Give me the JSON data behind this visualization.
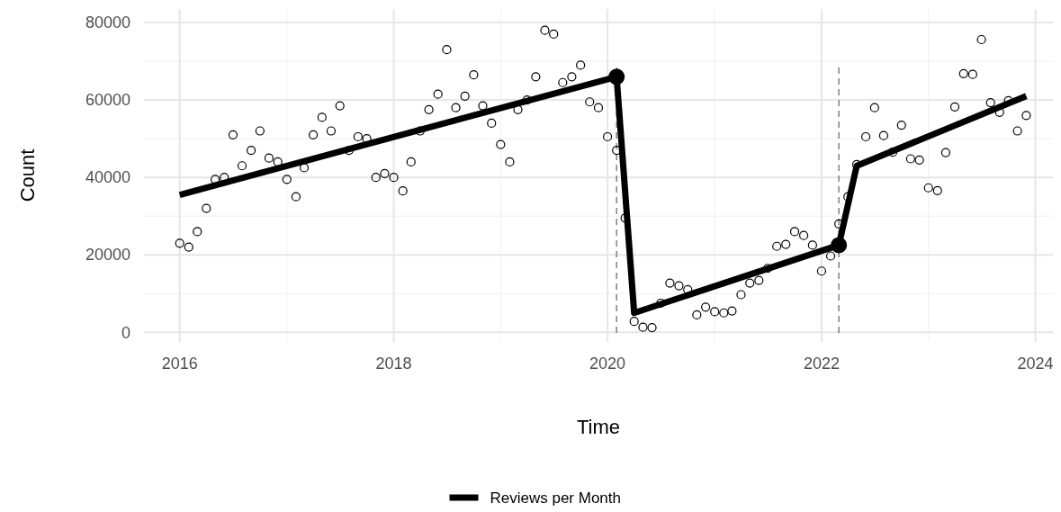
{
  "chart_data": {
    "type": "scatter",
    "xlabel": "Time",
    "ylabel": "Count",
    "xlim": [
      "2015-09",
      "2024-03"
    ],
    "xticks": [
      {
        "value": "2016",
        "label": "2016"
      },
      {
        "value": "2018",
        "label": "2018"
      },
      {
        "value": "2020",
        "label": "2020"
      },
      {
        "value": "2022",
        "label": "2022"
      },
      {
        "value": "2024",
        "label": "2024"
      }
    ],
    "ylim": [
      -2500,
      83500
    ],
    "yticks": [
      0,
      20000,
      40000,
      60000,
      80000
    ],
    "grid": true,
    "legend": "bottom",
    "series": [
      {
        "marker": "circle",
        "color": "#000000",
        "x": [
          "2016-01",
          "2016-02",
          "2016-03",
          "2016-04",
          "2016-05",
          "2016-06",
          "2016-07",
          "2016-08",
          "2016-09",
          "2016-10",
          "2016-11",
          "2016-12",
          "2017-01",
          "2017-02",
          "2017-03",
          "2017-04",
          "2017-05",
          "2017-06",
          "2017-07",
          "2017-08",
          "2017-09",
          "2017-10",
          "2017-11",
          "2017-12",
          "2018-01",
          "2018-02",
          "2018-03",
          "2018-04",
          "2018-05",
          "2018-06",
          "2018-07",
          "2018-08",
          "2018-09",
          "2018-10",
          "2018-11",
          "2018-12",
          "2019-01",
          "2019-02",
          "2019-03",
          "2019-04",
          "2019-05",
          "2019-06",
          "2019-07",
          "2019-08",
          "2019-09",
          "2019-10",
          "2019-11",
          "2019-12",
          "2020-01",
          "2020-02",
          "2020-03",
          "2020-04",
          "2020-05",
          "2020-06",
          "2020-07",
          "2020-08",
          "2020-09",
          "2020-10",
          "2020-11",
          "2020-12",
          "2021-01",
          "2021-02",
          "2021-03",
          "2021-04",
          "2021-05",
          "2021-06",
          "2021-07",
          "2021-08",
          "2021-09",
          "2021-10",
          "2021-11",
          "2021-12",
          "2022-01",
          "2022-02",
          "2022-03",
          "2022-04",
          "2022-05",
          "2022-06",
          "2022-07",
          "2022-08",
          "2022-09",
          "2022-10",
          "2022-11",
          "2022-12",
          "2023-01",
          "2023-02",
          "2023-03",
          "2023-04",
          "2023-05",
          "2023-06",
          "2023-07",
          "2023-08",
          "2023-09",
          "2023-10",
          "2023-11",
          "2023-12"
        ],
        "values": [
          23000,
          22000,
          26000,
          32000,
          39500,
          40000,
          51000,
          43000,
          47000,
          52000,
          45000,
          44000,
          39500,
          35000,
          42500,
          51000,
          55500,
          52000,
          58500,
          47000,
          50500,
          50000,
          40000,
          41000,
          40000,
          36500,
          44000,
          52000,
          57500,
          61500,
          73000,
          58000,
          61000,
          66500,
          58500,
          54000,
          48500,
          44000,
          57500,
          60000,
          66000,
          78000,
          77000,
          64500,
          66000,
          69000,
          59500,
          58000,
          50500,
          47000,
          29500,
          2800,
          1300,
          1200,
          7500,
          12700,
          12000,
          11000,
          4500,
          6500,
          5300,
          5000,
          5500,
          9700,
          12700,
          13400,
          16500,
          22200,
          22700,
          26000,
          25000,
          22500,
          15800,
          19700,
          28000,
          35000,
          43300,
          50500,
          58000,
          50800,
          46500,
          53500,
          44800,
          44500,
          37300,
          36600,
          46400,
          58200,
          66800,
          66600,
          75600,
          59300,
          56800,
          59800,
          52000,
          56000
        ]
      },
      {
        "type": "line",
        "name": "Reviews per Month",
        "color": "#000000",
        "line_style": "solid",
        "x": [
          "2016-01",
          "2020-02",
          "2020-04",
          "2022-03",
          "2022-05",
          "2023-12"
        ],
        "values": [
          35500,
          66000,
          5000,
          22500,
          43000,
          61000
        ]
      },
      {
        "type": "bubble",
        "color": "#000000",
        "x": [
          "2020-02",
          "2022-03"
        ],
        "values": [
          66000,
          22500
        ],
        "sizes": [
          1,
          1
        ]
      }
    ],
    "ref_lines": [
      {
        "axis": "x",
        "value": "2020-02",
        "color": "#808080",
        "line_style": "dashed"
      },
      {
        "axis": "x",
        "value": "2022-03",
        "color": "#808080",
        "line_style": "dashed"
      }
    ]
  }
}
